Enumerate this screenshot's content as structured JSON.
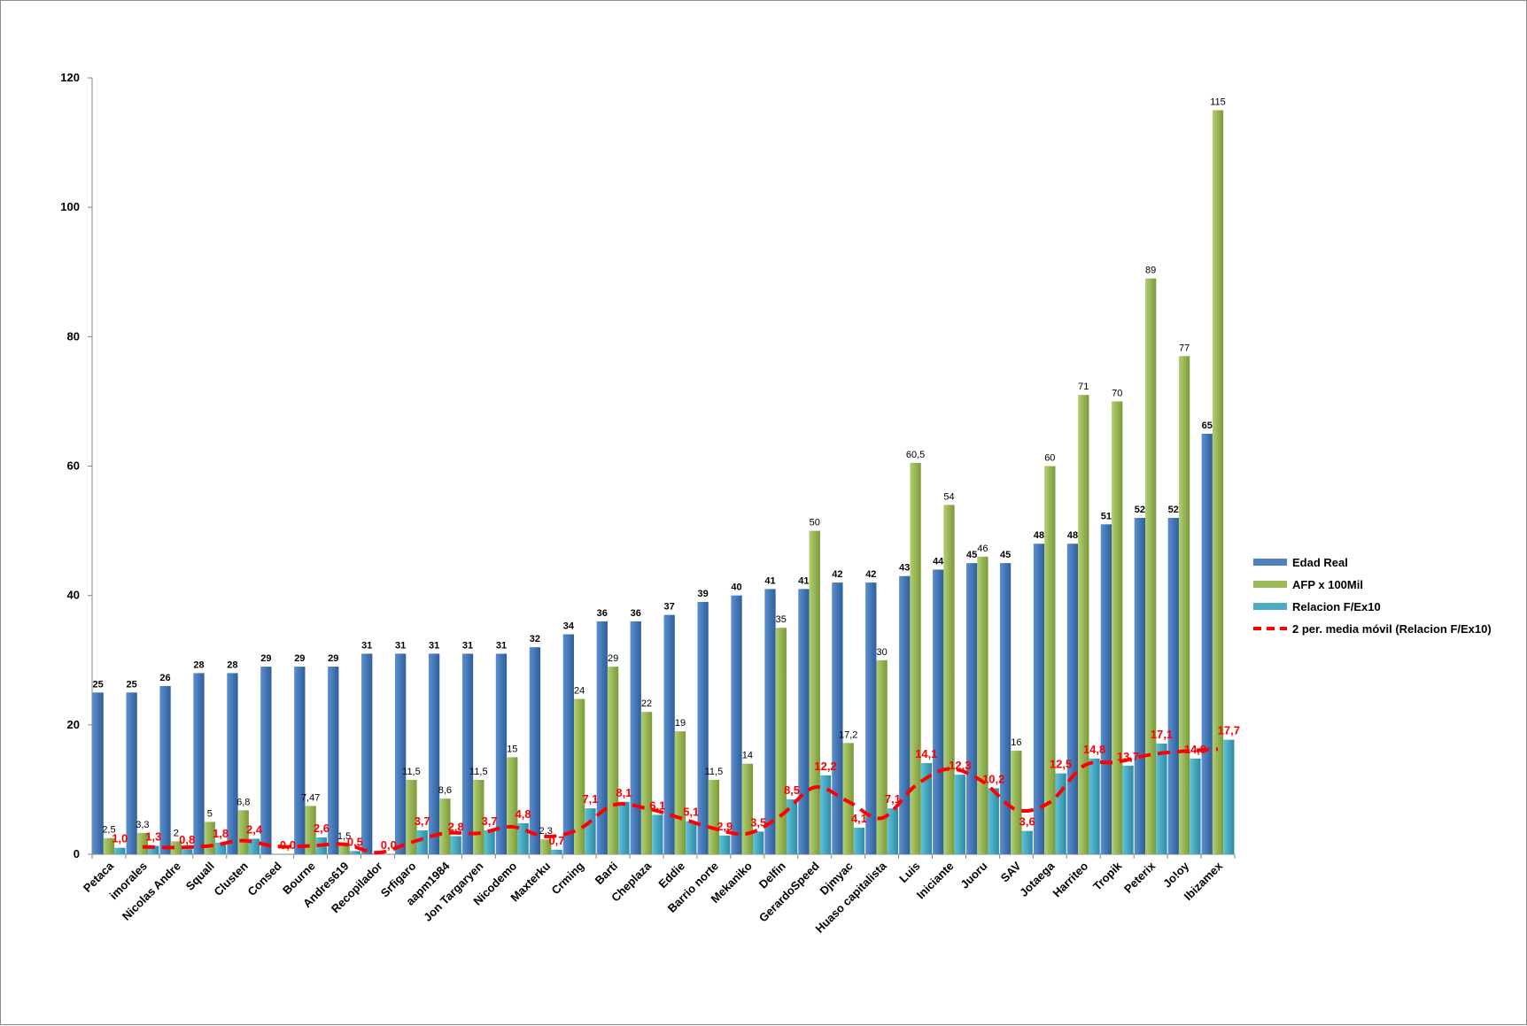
{
  "chart_data": {
    "type": "bar",
    "title": "",
    "xlabel": "",
    "ylabel": "",
    "ylim": [
      0,
      120
    ],
    "yticks": [
      0,
      20,
      40,
      60,
      80,
      100,
      120
    ],
    "ytick_labels": [
      "0",
      "20",
      "40",
      "60",
      "80",
      "100",
      "120"
    ],
    "grid": false,
    "legend_position": "right",
    "categories": [
      "Petaca",
      "imorales",
      "Nicolas Andre",
      "Squall",
      "Clusten",
      "Consed",
      "Bourne",
      "Andres619",
      "Recopilador",
      "Srfigaro",
      "aapm1984",
      "Jon Targaryen",
      "Nicodemo",
      "Maxterku",
      "Crming",
      "Barti",
      "Cheplaza",
      "Eddie",
      "Barrio norte",
      "Mekaniko",
      "Delfin",
      "GerardoSpeed",
      "Djmyac",
      "Huaso capitalista",
      "Luis",
      "Iniciante",
      "Juoru",
      "SAV",
      "Jotaega",
      "Harriteo",
      "Tropik",
      "Peterix",
      "Jo!oy",
      "Ibizamex"
    ],
    "series": [
      {
        "name": "Edad Real",
        "color": "#4f81bd",
        "values": [
          25,
          25,
          26,
          28,
          28,
          29,
          29,
          29,
          31,
          31,
          31,
          31,
          31,
          32,
          34,
          36,
          36,
          37,
          39,
          40,
          41,
          41,
          42,
          42,
          43,
          44,
          45,
          45,
          48,
          48,
          51,
          52,
          52,
          65
        ],
        "labels": [
          "25",
          "25",
          "26",
          "28",
          "28",
          "29",
          "29",
          "29",
          "31",
          "31",
          "31",
          "31",
          "31",
          "32",
          "34",
          "36",
          "36",
          "37",
          "39",
          "40",
          "41",
          "41",
          "42",
          "42",
          "43",
          "44",
          "45",
          "45",
          "48",
          "48",
          "51",
          "52",
          "52",
          "65"
        ]
      },
      {
        "name": "AFP x 100Mil",
        "color": "#9bbb59",
        "values": [
          2.5,
          3.3,
          2,
          5,
          6.8,
          0,
          7.47,
          1.5,
          0,
          11.5,
          8.6,
          11.5,
          15,
          2.3,
          24,
          29,
          22,
          19,
          11.5,
          14,
          35,
          50,
          17.2,
          30,
          60.5,
          54,
          46,
          16,
          60,
          71,
          70,
          89,
          77,
          115
        ],
        "labels": [
          "2,5",
          "3,3",
          "2",
          "5",
          "6,8",
          "",
          "7,47",
          "1,5",
          "",
          "11,5",
          "8,6",
          "11,5",
          "15",
          "2,3",
          "24",
          "29",
          "22",
          "19",
          "11,5",
          "14",
          "35",
          "50",
          "17,2",
          "30",
          "60,5",
          "54",
          "46",
          "16",
          "60",
          "71",
          "70",
          "89",
          "77",
          "115"
        ]
      },
      {
        "name": "Relacion F/Ex10",
        "color": "#4bacc6",
        "values": [
          1.0,
          1.3,
          0.8,
          1.8,
          2.4,
          0.0,
          2.6,
          0.5,
          0.0,
          3.7,
          2.8,
          3.7,
          4.8,
          0.7,
          7.1,
          8.1,
          6.1,
          5.1,
          2.9,
          3.5,
          8.5,
          12.2,
          4.1,
          7.1,
          14.1,
          12.3,
          10.2,
          3.6,
          12.5,
          14.8,
          13.7,
          17.1,
          14.8,
          17.7
        ],
        "labels": [
          "1,0",
          "1,3",
          "0,8",
          "1,8",
          "2,4",
          "0,0",
          "2,6",
          "0,5",
          "0,0",
          "3,7",
          "2,8",
          "3,7",
          "4,8",
          "0,7",
          "7,1",
          "8,1",
          "6,1",
          "5,1",
          "2,9",
          "3,5",
          "8,5",
          "12,2",
          "4,1",
          "7,1",
          "14,1",
          "12,3",
          "10,2",
          "3,6",
          "12,5",
          "14,8",
          "13,7",
          "17,1",
          "14,8",
          "17,7"
        ]
      },
      {
        "name": "2 per. media móvil (Relacion F/Ex10)",
        "color": "#ff0000",
        "type": "line",
        "style": "dashed",
        "values": [
          null,
          1.15,
          1.05,
          1.3,
          2.1,
          1.2,
          1.3,
          1.55,
          0.25,
          1.85,
          3.25,
          3.25,
          4.25,
          2.75,
          3.9,
          7.6,
          7.1,
          5.6,
          4.0,
          3.2,
          6.0,
          10.35,
          8.15,
          5.6,
          10.6,
          13.2,
          11.25,
          6.9,
          8.05,
          13.65,
          14.25,
          15.4,
          15.95,
          16.25
        ]
      }
    ]
  }
}
